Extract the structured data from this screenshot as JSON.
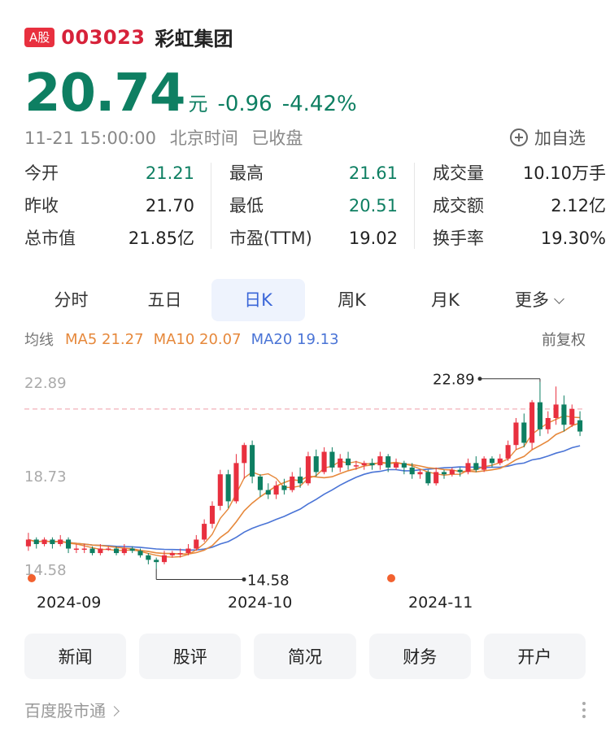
{
  "header": {
    "badge": "A股",
    "code": "003023",
    "name": "彩虹集团"
  },
  "quote": {
    "price": "20.74",
    "unit": "元",
    "change": "-0.96",
    "change_pct": "-4.42%"
  },
  "status": {
    "time": "11-21 15:00:00",
    "tz": "北京时间",
    "state": "已收盘",
    "watchlist_label": "加自选"
  },
  "stats": {
    "col1": [
      {
        "label": "今开",
        "value": "21.21",
        "green": true
      },
      {
        "label": "昨收",
        "value": "21.70",
        "green": false
      },
      {
        "label": "总市值",
        "value": "21.85亿",
        "green": false
      }
    ],
    "col2": [
      {
        "label": "最高",
        "value": "21.61",
        "green": true
      },
      {
        "label": "最低",
        "value": "20.51",
        "green": true
      },
      {
        "label": "市盈(TTM)",
        "value": "19.02",
        "green": false
      }
    ],
    "col3": [
      {
        "label": "成交量",
        "value": "10.10万手",
        "green": false
      },
      {
        "label": "成交额",
        "value": "2.12亿",
        "green": false
      },
      {
        "label": "换手率",
        "value": "19.30%",
        "green": false
      }
    ]
  },
  "tabs": [
    "分时",
    "五日",
    "日K",
    "周K",
    "月K",
    "更多"
  ],
  "active_tab": "日K",
  "ma": {
    "label": "均线",
    "ma5": "MA5 21.27",
    "ma10": "MA10 20.07",
    "ma20": "MA20 19.13",
    "adjust": "前复权"
  },
  "chart_data": {
    "type": "candlestick",
    "y_ticks": [
      "22.89",
      "18.73",
      "14.58"
    ],
    "ylim": [
      14.58,
      22.89
    ],
    "x_labels": [
      "2024-09",
      "2024-10",
      "2024-11"
    ],
    "reference_line": 21.7,
    "high_marker": "22.89",
    "low_marker": "14.58",
    "colors": {
      "up": "#e8303f",
      "down": "#0e7f62",
      "ma5": "#e6883b",
      "ma10": "#e6883b",
      "ma20": "#4a74d6",
      "ref": "#f0a8b0"
    },
    "candles": [
      [
        15.6,
        15.9,
        16.2,
        15.4
      ],
      [
        15.9,
        15.7,
        16.0,
        15.5
      ],
      [
        15.7,
        15.9,
        16.0,
        15.6
      ],
      [
        15.9,
        15.7,
        16.0,
        15.5
      ],
      [
        15.7,
        15.9,
        16.1,
        15.6
      ],
      [
        15.9,
        15.5,
        16.0,
        15.3
      ],
      [
        15.5,
        15.5,
        15.7,
        15.3
      ],
      [
        15.5,
        15.5,
        15.7,
        15.3
      ],
      [
        15.5,
        15.3,
        15.6,
        15.2
      ],
      [
        15.3,
        15.5,
        15.7,
        15.2
      ],
      [
        15.5,
        15.5,
        15.6,
        15.4
      ],
      [
        15.5,
        15.3,
        15.6,
        15.2
      ],
      [
        15.3,
        15.5,
        15.7,
        15.2
      ],
      [
        15.5,
        15.4,
        15.6,
        15.3
      ],
      [
        15.4,
        15.2,
        15.5,
        15.1
      ],
      [
        15.2,
        15.0,
        15.3,
        14.8
      ],
      [
        15.0,
        14.9,
        15.1,
        14.6
      ],
      [
        14.9,
        15.2,
        15.4,
        14.8
      ],
      [
        15.2,
        15.3,
        15.4,
        15.1
      ],
      [
        15.3,
        15.3,
        15.5,
        15.1
      ],
      [
        15.3,
        15.5,
        15.7,
        15.2
      ],
      [
        15.5,
        15.9,
        16.1,
        15.4
      ],
      [
        15.9,
        16.6,
        16.8,
        15.8
      ],
      [
        16.6,
        17.4,
        17.6,
        16.4
      ],
      [
        17.4,
        18.8,
        19.0,
        17.2
      ],
      [
        18.8,
        17.6,
        19.0,
        17.3
      ],
      [
        17.6,
        19.3,
        19.7,
        17.5
      ],
      [
        19.3,
        20.1,
        20.2,
        18.6
      ],
      [
        20.1,
        18.7,
        20.3,
        18.4
      ],
      [
        18.7,
        18.1,
        18.8,
        17.8
      ],
      [
        18.1,
        17.9,
        18.4,
        17.7
      ],
      [
        17.9,
        18.3,
        18.5,
        17.7
      ],
      [
        18.3,
        18.1,
        18.6,
        17.9
      ],
      [
        18.1,
        18.7,
        18.9,
        18.0
      ],
      [
        18.7,
        18.4,
        19.1,
        18.2
      ],
      [
        18.4,
        19.6,
        19.8,
        18.3
      ],
      [
        19.6,
        18.9,
        19.9,
        18.7
      ],
      [
        18.9,
        19.8,
        20.0,
        18.8
      ],
      [
        19.8,
        19.1,
        20.0,
        18.9
      ],
      [
        19.1,
        19.5,
        19.7,
        18.9
      ],
      [
        19.5,
        19.2,
        19.8,
        19.0
      ],
      [
        19.2,
        19.2,
        19.4,
        19.0
      ],
      [
        19.2,
        19.3,
        19.4,
        19.0
      ],
      [
        19.3,
        19.2,
        19.5,
        19.0
      ],
      [
        19.2,
        19.6,
        19.8,
        19.0
      ],
      [
        19.6,
        19.1,
        19.7,
        18.9
      ],
      [
        19.1,
        19.3,
        19.5,
        19.0
      ],
      [
        19.3,
        19.1,
        19.4,
        18.8
      ],
      [
        19.1,
        18.8,
        19.3,
        18.6
      ],
      [
        18.8,
        18.9,
        19.0,
        18.6
      ],
      [
        18.9,
        18.4,
        19.0,
        18.3
      ],
      [
        18.4,
        18.9,
        19.1,
        18.3
      ],
      [
        18.9,
        18.8,
        19.0,
        18.6
      ],
      [
        18.8,
        19.0,
        19.1,
        18.7
      ],
      [
        19.0,
        18.9,
        19.1,
        18.7
      ],
      [
        18.9,
        19.3,
        19.5,
        18.8
      ],
      [
        19.3,
        19.0,
        19.6,
        18.9
      ],
      [
        19.0,
        19.5,
        19.6,
        18.9
      ],
      [
        19.5,
        19.3,
        19.6,
        19.1
      ],
      [
        19.3,
        19.5,
        19.7,
        19.2
      ],
      [
        19.5,
        20.1,
        20.3,
        19.4
      ],
      [
        20.1,
        21.1,
        21.3,
        19.9
      ],
      [
        21.1,
        20.2,
        21.5,
        20.0
      ],
      [
        20.2,
        22.0,
        22.1,
        19.9
      ],
      [
        22.0,
        20.8,
        22.9,
        20.5
      ],
      [
        20.8,
        21.3,
        21.6,
        20.6
      ],
      [
        21.3,
        21.9,
        22.7,
        21.0
      ],
      [
        21.9,
        21.0,
        22.3,
        20.7
      ],
      [
        21.0,
        21.7,
        21.9,
        20.9
      ],
      [
        21.2,
        20.7,
        21.6,
        20.5
      ]
    ]
  },
  "actions": [
    "新闻",
    "股评",
    "简况",
    "财务",
    "开户"
  ],
  "footer": {
    "source": "百度股市通"
  }
}
